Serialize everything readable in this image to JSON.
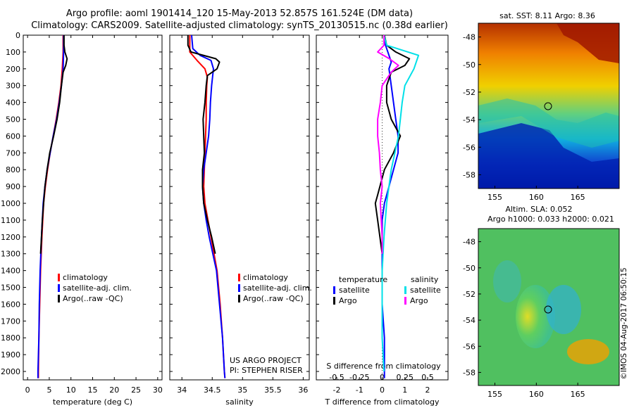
{
  "header": {
    "line1": "Argo profile: aoml 1901414_120 15-May-2013 52.857S 161.524E (DM data)",
    "line2": "Climatology: CARS2009. Satellite-adjusted climatology: synTS_20130515.nc (0.38d earlier)"
  },
  "colors": {
    "climatology": "#ff0000",
    "satellite": "#0000ff",
    "argo": "#000000",
    "sat_s": "#00e0e8",
    "argo_s": "#ff00ff"
  },
  "legend_prof": [
    {
      "label": "climatology",
      "color": "#ff0000"
    },
    {
      "label": "satellite-adj. clim.",
      "color": "#0000ff"
    },
    {
      "label": "Argo(..raw -QC)",
      "color": "#000000"
    }
  ],
  "legend_diff": {
    "temp_title": "temperature",
    "sal_title": "salinity",
    "temp_items": [
      {
        "label": "satellite",
        "color": "#0000ff"
      },
      {
        "label": "Argo",
        "color": "#000000"
      }
    ],
    "sal_items": [
      {
        "label": "satellite",
        "color": "#00e0e8"
      },
      {
        "label": "Argo",
        "color": "#ff00ff"
      }
    ]
  },
  "project": {
    "line1": "US ARGO PROJECT",
    "line2": "PI: STEPHEN RISER"
  },
  "maps": {
    "sst_title": "sat. SST: 8.11  Argo: 8.36",
    "sla_title1": "Altim. SLA: 0.052",
    "sla_title2": "Argo h1000: 0.033 h2000: 0.021",
    "watermark": "©IMOS 04-Aug-2017 06:50:15",
    "lat_ticks": [
      "-48",
      "-50",
      "-52",
      "-54",
      "-56",
      "-58"
    ],
    "lon_ticks": [
      "155",
      "160",
      "165"
    ],
    "lat_values": [
      -48,
      -50,
      -52,
      -54,
      -56,
      -58
    ],
    "lon_values": [
      155,
      160,
      165
    ],
    "lon_range": [
      153,
      170
    ],
    "lat_range": [
      -59,
      -47
    ],
    "float_position": {
      "lon": 161.524,
      "lat": -52.857
    }
  },
  "chart_data": [
    {
      "type": "line",
      "xlabel": "temperature (deg C)",
      "ylabel": "",
      "xlim": [
        -1,
        31
      ],
      "ylim": [
        2050,
        0
      ],
      "xticks": [
        0,
        5,
        10,
        15,
        20,
        25,
        30
      ],
      "xticklabels": [
        "0",
        "5",
        "10",
        "15",
        "20",
        "25",
        "30"
      ],
      "yticks": [
        0,
        100,
        200,
        300,
        400,
        500,
        600,
        700,
        800,
        900,
        1000,
        1100,
        1200,
        1300,
        1400,
        1500,
        1600,
        1700,
        1800,
        1900,
        2000
      ],
      "yticklabels": [
        "0",
        "100",
        "200",
        "300",
        "400",
        "500",
        "600",
        "700",
        "800",
        "900",
        "1000",
        "1100",
        "1200",
        "1300",
        "1400",
        "1500",
        "1600",
        "1700",
        "1800",
        "1900",
        "2000"
      ],
      "series": [
        {
          "name": "climatology",
          "color": "#ff0000",
          "depth": [
            0,
            100,
            200,
            300,
            400,
            500,
            600,
            700,
            800,
            900,
            1000,
            1200,
            1400,
            1600,
            1800,
            2000,
            2040
          ],
          "values": [
            8.2,
            8.2,
            8.0,
            7.7,
            7.2,
            6.6,
            5.9,
            5.2,
            4.6,
            4.1,
            3.7,
            3.3,
            3.0,
            2.8,
            2.6,
            2.5,
            2.5
          ]
        },
        {
          "name": "satellite-adj. clim.",
          "color": "#0000ff",
          "depth": [
            0,
            100,
            200,
            300,
            400,
            500,
            600,
            700,
            800,
            900,
            1000,
            1200,
            1400,
            1600,
            1800,
            2000,
            2040
          ],
          "values": [
            8.3,
            8.3,
            8.2,
            7.8,
            7.3,
            6.7,
            5.9,
            5.2,
            4.5,
            4.0,
            3.6,
            3.2,
            2.9,
            2.7,
            2.6,
            2.4,
            2.4
          ]
        },
        {
          "name": "Argo(..raw -QC)",
          "color": "#000000",
          "depth": [
            0,
            60,
            100,
            140,
            180,
            220,
            300,
            400,
            500,
            600,
            700,
            800,
            900,
            1000,
            1100,
            1200,
            1300
          ],
          "values": [
            8.4,
            8.4,
            8.6,
            9.1,
            8.8,
            8.2,
            7.8,
            7.4,
            6.8,
            6.0,
            5.1,
            4.5,
            4.0,
            3.7,
            3.4,
            3.2,
            3.0
          ]
        }
      ]
    },
    {
      "type": "line",
      "xlabel": "salinity",
      "ylabel": "",
      "xlim": [
        33.8,
        36.1
      ],
      "ylim": [
        2050,
        0
      ],
      "xticks": [
        34,
        34.5,
        35,
        35.5,
        36
      ],
      "xticklabels": [
        "34",
        "34.5",
        "35",
        "35.5",
        "36"
      ],
      "series": [
        {
          "name": "climatology",
          "color": "#ff0000",
          "depth": [
            0,
            100,
            150,
            200,
            250,
            300,
            400,
            500,
            700,
            900,
            1000,
            1100,
            1200,
            1300,
            1400,
            1600,
            1800,
            2000,
            2040
          ],
          "values": [
            34.13,
            34.13,
            34.25,
            34.38,
            34.42,
            34.41,
            34.4,
            34.4,
            34.38,
            34.36,
            34.38,
            34.43,
            34.48,
            34.53,
            34.58,
            34.63,
            34.67,
            34.7,
            34.71
          ]
        },
        {
          "name": "satellite-adj. clim.",
          "color": "#0000ff",
          "depth": [
            0,
            80,
            120,
            150,
            200,
            300,
            400,
            500,
            600,
            700,
            800,
            900,
            1000,
            1100,
            1200,
            1300,
            1400,
            1600,
            1800,
            2000,
            2040
          ],
          "values": [
            34.16,
            34.18,
            34.3,
            34.48,
            34.52,
            34.49,
            34.47,
            34.46,
            34.44,
            34.4,
            34.36,
            34.34,
            34.36,
            34.4,
            34.45,
            34.51,
            34.57,
            34.62,
            34.67,
            34.7,
            34.71
          ]
        },
        {
          "name": "Argo(..raw -QC)",
          "color": "#000000",
          "depth": [
            0,
            60,
            100,
            140,
            160,
            200,
            240,
            300,
            400,
            500,
            600,
            700,
            800,
            900,
            1000,
            1100,
            1200,
            1300
          ],
          "values": [
            34.1,
            34.1,
            34.15,
            34.56,
            34.62,
            34.58,
            34.42,
            34.4,
            34.38,
            34.35,
            34.36,
            34.37,
            34.34,
            34.34,
            34.36,
            34.42,
            34.49,
            34.55
          ]
        }
      ]
    },
    {
      "type": "line",
      "xlabel": "T difference from climatology",
      "xlabel_top": "S difference from climatology",
      "ylabel": "",
      "xlim": [
        -2.9,
        2.9
      ],
      "ylim": [
        2050,
        0
      ],
      "xticks": [
        -2,
        -1,
        0,
        1,
        2
      ],
      "xticklabels": [
        "-2",
        "-1",
        "0",
        "1",
        "2"
      ],
      "xticks_s": [
        -0.5,
        -0.25,
        0,
        0.25,
        0.5
      ],
      "xticklabels_s": [
        "-0.5",
        "-0.25",
        "0",
        "0.25",
        "0.5"
      ],
      "series": [
        {
          "name": "satellite",
          "color": "#0000ff",
          "depth": [
            0,
            40,
            80,
            120,
            160,
            200,
            300,
            400,
            500,
            600,
            700,
            800,
            900,
            1000,
            1100,
            1200,
            1400,
            1600,
            1800,
            2000,
            2040
          ],
          "values": [
            0.1,
            0.1,
            0.2,
            0.3,
            0.4,
            0.3,
            0.4,
            0.5,
            0.6,
            0.7,
            0.7,
            0.5,
            0.3,
            0.1,
            0.0,
            0.0,
            0.0,
            0.0,
            0.1,
            0.1,
            0.1
          ]
        },
        {
          "name": "Argo",
          "color": "#000000",
          "depth": [
            0,
            60,
            100,
            140,
            180,
            220,
            300,
            400,
            500,
            600,
            700,
            800,
            900,
            950,
            1000,
            1100,
            1200,
            1300
          ],
          "values": [
            0.1,
            0.2,
            0.6,
            1.2,
            1.0,
            0.4,
            0.2,
            0.2,
            0.4,
            0.8,
            0.5,
            0.1,
            -0.1,
            -0.2,
            -0.3,
            -0.2,
            -0.1,
            0.0
          ]
        },
        {
          "name": "satellite",
          "color": "#00e0e8",
          "depth": [
            0,
            60,
            120,
            200,
            300,
            400,
            500,
            600,
            800,
            1000,
            1200,
            1400,
            1600,
            1800,
            2000
          ],
          "values": [
            0.02,
            0.05,
            0.4,
            0.35,
            0.25,
            0.22,
            0.2,
            0.18,
            0.1,
            0.05,
            0.02,
            0.0,
            0.0,
            0.0,
            0.02
          ]
        },
        {
          "name": "Argo",
          "color": "#ff00ff",
          "depth": [
            0,
            60,
            100,
            140,
            180,
            220,
            300,
            400,
            500,
            600,
            700,
            800,
            900,
            1000,
            1100,
            1200,
            1300
          ],
          "values": [
            0.02,
            0.02,
            -0.05,
            0.08,
            0.18,
            0.1,
            0.0,
            -0.02,
            -0.05,
            -0.05,
            -0.03,
            -0.02,
            0.0,
            -0.02,
            -0.01,
            0.0,
            0.0
          ]
        }
      ]
    }
  ]
}
